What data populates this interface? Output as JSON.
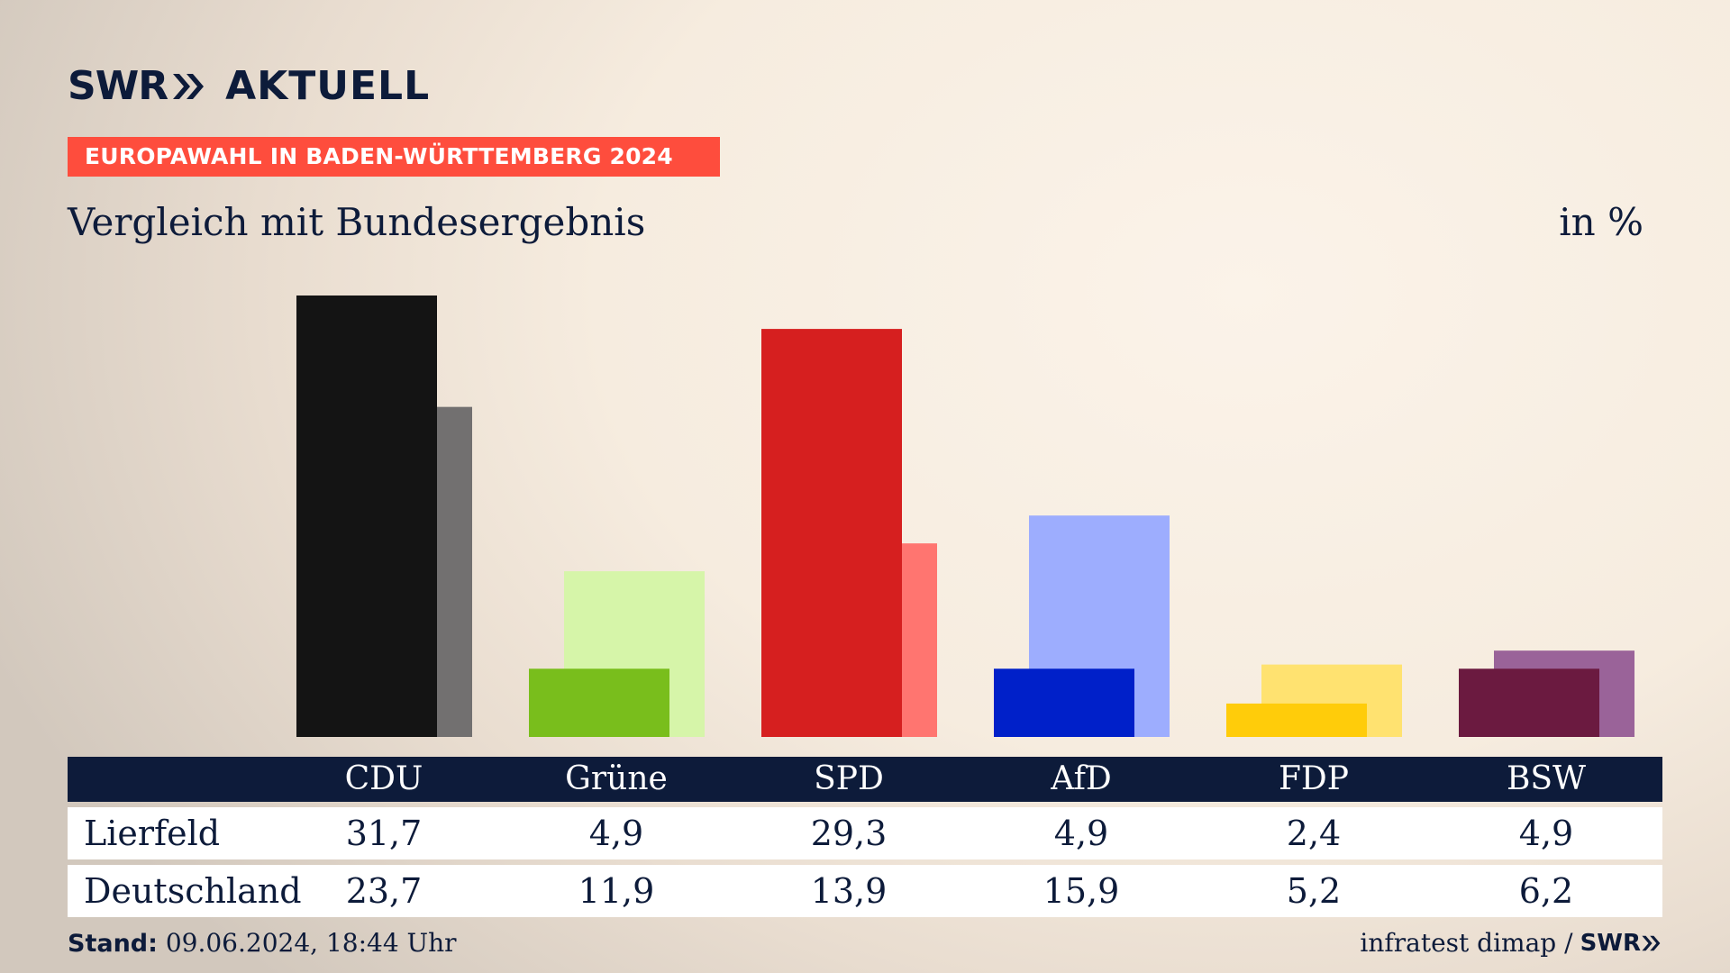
{
  "header": {
    "logo_swr": "SWR",
    "logo_aktuell": "AKTUELL",
    "banner": "EUROPAWAHL IN BADEN-WÜRTTEMBERG 2024",
    "subtitle": "Vergleich mit Bundesergebnis",
    "unit": "in %"
  },
  "colors": {
    "navy": "#0d1b3a",
    "banner": "#fe4d3d"
  },
  "chart_data": {
    "type": "bar",
    "categories": [
      "CDU",
      "Grüne",
      "SPD",
      "AfD",
      "FDP",
      "BSW"
    ],
    "series": [
      {
        "name": "Lierfeld",
        "values": [
          31.7,
          4.9,
          29.3,
          4.9,
          2.4,
          4.9
        ],
        "colors": [
          "#141414",
          "#79be1c",
          "#d61f1f",
          "#0020c9",
          "#ffcc0a",
          "#6b1a40"
        ]
      },
      {
        "name": "Deutschland",
        "values": [
          23.7,
          11.9,
          13.9,
          15.9,
          5.2,
          6.2
        ],
        "colors": [
          "#727070",
          "#d6f5a9",
          "#ff7570",
          "#9dadfe",
          "#ffe270",
          "#9a6399"
        ]
      }
    ],
    "value_labels": [
      [
        "31,7",
        "4,9",
        "29,3",
        "4,9",
        "2,4",
        "4,9"
      ],
      [
        "23,7",
        "11,9",
        "13,9",
        "15,9",
        "5,2",
        "6,2"
      ]
    ],
    "ylabel": "in %",
    "ylim": [
      0,
      31.7
    ],
    "grid": false
  },
  "table": {
    "columns": [
      "CDU",
      "Grüne",
      "SPD",
      "AfD",
      "FDP",
      "BSW"
    ],
    "rows": [
      {
        "label": "Lierfeld",
        "values": [
          "31,7",
          "4,9",
          "29,3",
          "4,9",
          "2,4",
          "4,9"
        ]
      },
      {
        "label": "Deutschland",
        "values": [
          "23,7",
          "11,9",
          "13,9",
          "15,9",
          "5,2",
          "6,2"
        ]
      }
    ]
  },
  "footer": {
    "stand_label": "Stand:",
    "stand_value": "09.06.2024, 18:44 Uhr",
    "source": "infratest dimap /",
    "source_logo": "SWR"
  }
}
